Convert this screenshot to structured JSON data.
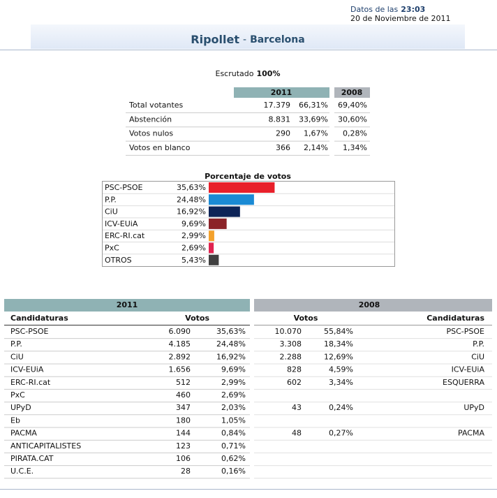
{
  "header": {
    "time_prefix": "Datos de las",
    "time": "23:03",
    "date": "20 de Noviembre de 2011",
    "municipality": "Ripollet",
    "separator": "-",
    "province": "Barcelona"
  },
  "scrutiny": {
    "label": "Escrutado",
    "value": "100%"
  },
  "summary": {
    "columns": [
      "2011",
      "2008"
    ],
    "rows": [
      [
        "Total votantes",
        "17.379",
        "66,31%",
        "69,40%"
      ],
      [
        "Abstención",
        "8.831",
        "33,69%",
        "30,60%"
      ],
      [
        "Votos nulos",
        "290",
        "1,67%",
        "0,28%"
      ],
      [
        "Votos en blanco",
        "366",
        "2,14%",
        "1,34%"
      ]
    ]
  },
  "chart_data": {
    "type": "bar",
    "orientation": "horizontal",
    "title": "Porcentaje de votos",
    "categories": [
      "PSC-PSOE",
      "P.P.",
      "CiU",
      "ICV-EUiA",
      "ERC-RI.cat",
      "PxC",
      "OTROS"
    ],
    "values": [
      35.63,
      24.48,
      16.92,
      9.69,
      2.99,
      2.69,
      5.43
    ],
    "value_labels": [
      "35,63%",
      "24,48%",
      "16,92%",
      "9,69%",
      "2,99%",
      "2,69%",
      "5,43%"
    ],
    "colors": [
      "#e8202a",
      "#1a8ad4",
      "#0d2457",
      "#8b2328",
      "#f3a12c",
      "#e0234f",
      "#404040"
    ]
  },
  "results": {
    "year_2011": "2011",
    "year_2008": "2008",
    "headers_2011": [
      "Candidaturas",
      "Votos"
    ],
    "headers_2008": [
      "Votos",
      "Candidaturas"
    ],
    "rows_2011": [
      [
        "PSC-PSOE",
        "6.090",
        "35,63%"
      ],
      [
        "P.P.",
        "4.185",
        "24,48%"
      ],
      [
        "CiU",
        "2.892",
        "16,92%"
      ],
      [
        "ICV-EUiA",
        "1.656",
        "9,69%"
      ],
      [
        "ERC-RI.cat",
        "512",
        "2,99%"
      ],
      [
        "PxC",
        "460",
        "2,69%"
      ],
      [
        "UPyD",
        "347",
        "2,03%"
      ],
      [
        "Eb",
        "180",
        "1,05%"
      ],
      [
        "PACMA",
        "144",
        "0,84%"
      ],
      [
        "ANTICAPITALISTES",
        "123",
        "0,71%"
      ],
      [
        "PIRATA.CAT",
        "106",
        "0,62%"
      ],
      [
        "U.C.E.",
        "28",
        "0,16%"
      ]
    ],
    "rows_2008": [
      [
        "10.070",
        "55,84%",
        "PSC-PSOE"
      ],
      [
        "3.308",
        "18,34%",
        "P.P."
      ],
      [
        "2.288",
        "12,69%",
        "CiU"
      ],
      [
        "828",
        "4,59%",
        "ICV-EUiA"
      ],
      [
        "602",
        "3,34%",
        "ESQUERRA"
      ],
      null,
      [
        "43",
        "0,24%",
        "UPyD"
      ],
      null,
      [
        "48",
        "0,27%",
        "PACMA"
      ],
      null,
      null,
      null
    ]
  }
}
